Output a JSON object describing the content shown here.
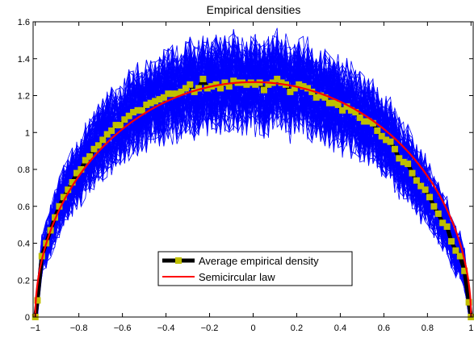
{
  "chart_data": {
    "type": "line",
    "title": "Empirical densities",
    "xlabel": "",
    "ylabel": "",
    "xlim": [
      -1.01,
      1.01
    ],
    "ylim": [
      0,
      1.6
    ],
    "xticks": [
      -1,
      -0.8,
      -0.6,
      -0.4,
      -0.2,
      0,
      0.2,
      0.4,
      0.6,
      0.8,
      1
    ],
    "xtick_labels": [
      "−1",
      "−0.8",
      "−0.6",
      "−0.4",
      "−0.2",
      "0",
      "0.2",
      "0.4",
      "0.6",
      "0.8",
      "1"
    ],
    "yticks": [
      0,
      0.2,
      0.4,
      0.6,
      0.8,
      1,
      1.2,
      1.4,
      1.6
    ],
    "ytick_labels": [
      "0",
      "0.2",
      "0.4",
      "0.6",
      "0.8",
      "1",
      "1.2",
      "1.4",
      "1.6"
    ],
    "grid": false,
    "legend": {
      "placement": "bottom-center",
      "entries": [
        "Average empirical density",
        "Semicircular law"
      ]
    },
    "colors": {
      "empirical": "#0000ff",
      "average_line": "#000000",
      "average_marker": "#bfbf00",
      "semicircle": "#ff0000"
    },
    "series": [
      {
        "name": "Average empirical density",
        "x": [
          -1.0,
          -0.99,
          -0.97,
          -0.95,
          -0.93,
          -0.91,
          -0.89,
          -0.87,
          -0.85,
          -0.83,
          -0.81,
          -0.79,
          -0.77,
          -0.75,
          -0.73,
          -0.71,
          -0.69,
          -0.67,
          -0.65,
          -0.63,
          -0.61,
          -0.59,
          -0.57,
          -0.55,
          -0.53,
          -0.51,
          -0.49,
          -0.47,
          -0.45,
          -0.43,
          -0.41,
          -0.39,
          -0.37,
          -0.35,
          -0.33,
          -0.31,
          -0.29,
          -0.27,
          -0.25,
          -0.23,
          -0.21,
          -0.19,
          -0.17,
          -0.15,
          -0.13,
          -0.11,
          -0.09,
          -0.07,
          -0.05,
          -0.03,
          -0.01,
          0.01,
          0.03,
          0.05,
          0.07,
          0.09,
          0.11,
          0.13,
          0.15,
          0.17,
          0.19,
          0.21,
          0.23,
          0.25,
          0.27,
          0.29,
          0.31,
          0.33,
          0.35,
          0.37,
          0.39,
          0.41,
          0.43,
          0.45,
          0.47,
          0.49,
          0.51,
          0.53,
          0.55,
          0.57,
          0.59,
          0.61,
          0.63,
          0.65,
          0.67,
          0.69,
          0.71,
          0.73,
          0.75,
          0.77,
          0.79,
          0.81,
          0.83,
          0.85,
          0.87,
          0.89,
          0.91,
          0.93,
          0.95,
          0.97,
          0.99,
          1.0
        ],
        "y": [
          0.0,
          0.09,
          0.33,
          0.4,
          0.47,
          0.54,
          0.6,
          0.65,
          0.69,
          0.73,
          0.78,
          0.8,
          0.85,
          0.87,
          0.91,
          0.93,
          0.96,
          0.99,
          1.01,
          1.04,
          1.04,
          1.07,
          1.09,
          1.11,
          1.12,
          1.12,
          1.15,
          1.16,
          1.17,
          1.18,
          1.19,
          1.21,
          1.21,
          1.21,
          1.22,
          1.24,
          1.26,
          1.22,
          1.24,
          1.29,
          1.24,
          1.25,
          1.26,
          1.24,
          1.27,
          1.25,
          1.28,
          1.27,
          1.27,
          1.26,
          1.27,
          1.26,
          1.27,
          1.23,
          1.26,
          1.27,
          1.29,
          1.27,
          1.26,
          1.22,
          1.24,
          1.26,
          1.25,
          1.24,
          1.22,
          1.19,
          1.2,
          1.19,
          1.16,
          1.16,
          1.15,
          1.12,
          1.14,
          1.12,
          1.11,
          1.08,
          1.06,
          1.06,
          1.05,
          1.01,
          0.98,
          0.96,
          0.95,
          0.91,
          0.86,
          0.84,
          0.83,
          0.78,
          0.74,
          0.71,
          0.69,
          0.65,
          0.6,
          0.56,
          0.51,
          0.49,
          0.41,
          0.36,
          0.33,
          0.25,
          0.08,
          0.0
        ]
      },
      {
        "name": "Semicircular law",
        "function": "(4/pi)*sqrt(1-x^2)",
        "x_range": [
          -1,
          1
        ]
      }
    ],
    "empirical_curves": {
      "count": 90,
      "noise_amplitude": 0.22
    }
  }
}
